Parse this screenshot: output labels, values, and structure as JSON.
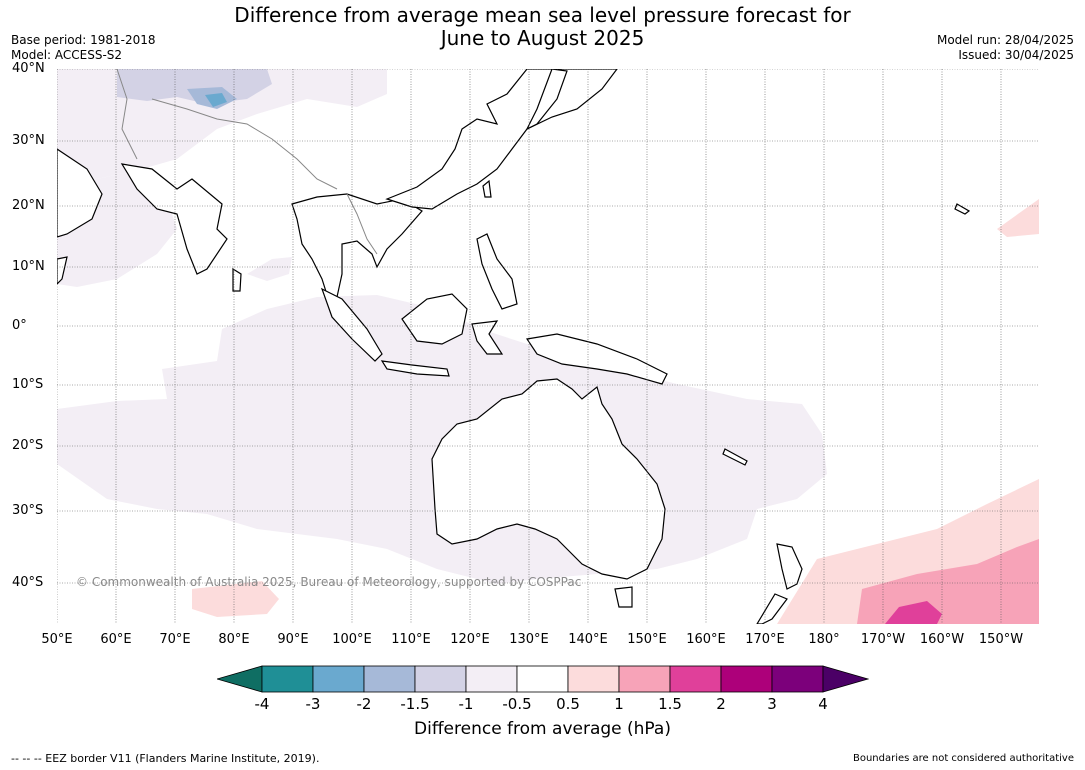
{
  "title_line1": "Difference from average mean sea level pressure forecast for",
  "title_line2": "June to August 2025",
  "base_period": "Base period: 1981-2018",
  "model": "Model: ACCESS-S2",
  "model_run": "Model run: 28/04/2025",
  "issued": "Issued: 30/04/2025",
  "lat_labels": [
    "40°N",
    "30°N",
    "20°N",
    "10°N",
    "0°",
    "10°S",
    "20°S",
    "30°S",
    "40°S"
  ],
  "lon_labels": [
    "50°E",
    "60°E",
    "70°E",
    "80°E",
    "90°E",
    "100°E",
    "110°E",
    "120°E",
    "130°E",
    "140°E",
    "150°E",
    "160°E",
    "170°E",
    "180°",
    "170°W",
    "160°W",
    "150°W"
  ],
  "copyright": "© Commonwealth of Australia 2025, Bureau of Meteorology, supported by COSPPac",
  "colorbar": {
    "ticks": [
      "-4",
      "-3",
      "-2",
      "-1.5",
      "-1",
      "-0.5",
      "0.5",
      "1",
      "1.5",
      "2",
      "3",
      "4"
    ],
    "colors": [
      "#0f6e63",
      "#1f8f96",
      "#6aa9cf",
      "#a6b9d8",
      "#d3d2e5",
      "#f3eef5",
      "#ffffff",
      "#fcdcdc",
      "#f7a3b8",
      "#e0409a",
      "#ad007a",
      "#7c007b",
      "#4b0066"
    ],
    "label": "Difference from average (hPa)"
  },
  "footer_left": "--  --  -- EEZ border V11 (Flanders Marine Institute, 2019).",
  "footer_right": "Boundaries are not considered authoritative"
}
